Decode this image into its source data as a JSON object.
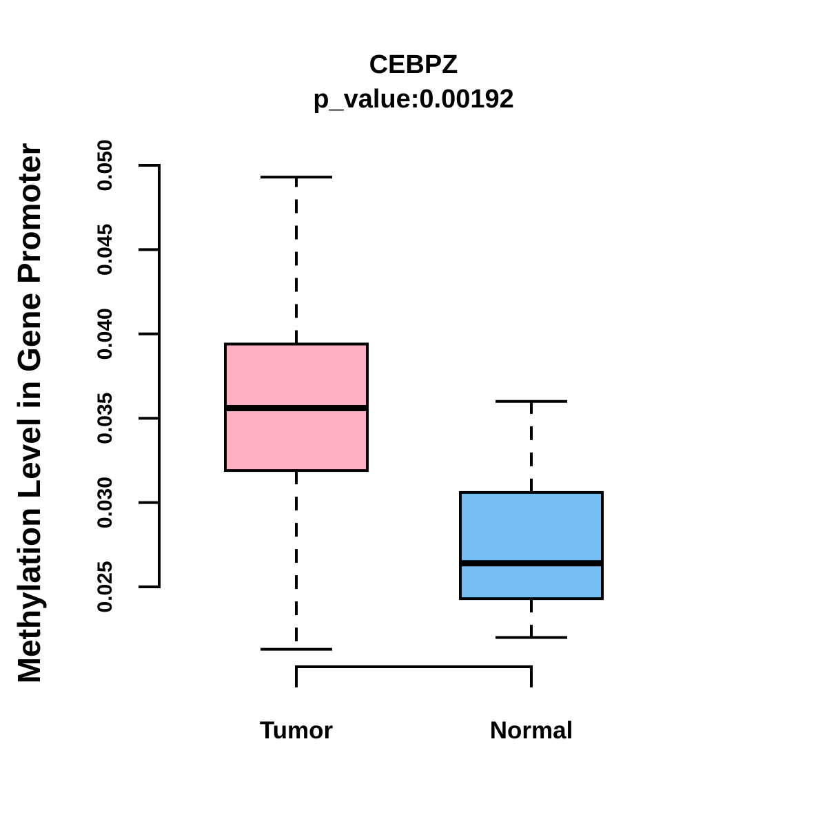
{
  "chart_data": {
    "type": "boxplot",
    "title": "CEBPZ",
    "subtitle": "p_value:0.00192",
    "ylabel": "Methylation Level in Gene Promoter",
    "xlabel": "",
    "categories": [
      "Tumor",
      "Normal"
    ],
    "series": [
      {
        "name": "Tumor",
        "color": "#ffb0c4",
        "whisker_low": 0.0213,
        "q1": 0.0319,
        "median": 0.0356,
        "q3": 0.0394,
        "whisker_high": 0.0493
      },
      {
        "name": "Normal",
        "color": "#74bff4",
        "whisker_low": 0.022,
        "q1": 0.0243,
        "median": 0.0264,
        "q3": 0.0306,
        "whisker_high": 0.036
      }
    ],
    "yticks": [
      "0.025",
      "0.030",
      "0.035",
      "0.040",
      "0.045",
      "0.050"
    ],
    "ylim": [
      0.025,
      0.05
    ],
    "grid": false,
    "legend": false,
    "line_color": "#000000",
    "whisker_style": "dashed"
  }
}
